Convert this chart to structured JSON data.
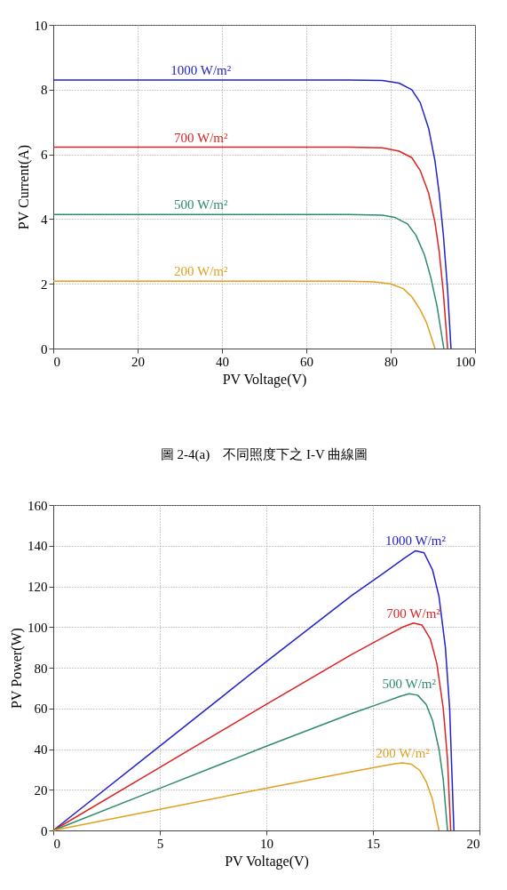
{
  "chart_data": [
    {
      "type": "line",
      "xlabel": "PV Voltage(V)",
      "ylabel": "PV Current(A)",
      "xlim": [
        0,
        100
      ],
      "ylim": [
        0,
        10
      ],
      "xticks": [
        0,
        20,
        40,
        60,
        80,
        100
      ],
      "yticks": [
        0,
        2,
        4,
        6,
        8,
        10
      ],
      "grid": true,
      "legend": false,
      "series": [
        {
          "name": "1000 W/m²",
          "color": "#2222cc",
          "x": [
            0,
            70,
            78,
            82,
            85,
            87,
            89,
            90.5,
            91.5,
            92.5,
            93.5,
            94.3
          ],
          "values": [
            8.3,
            8.3,
            8.28,
            8.2,
            8.0,
            7.6,
            6.8,
            5.8,
            4.8,
            3.5,
            1.8,
            0
          ]
        },
        {
          "name": "700 W/m²",
          "color": "#dd2222",
          "x": [
            0,
            70,
            78,
            82,
            85,
            87,
            89,
            90.5,
            91.5,
            92.5,
            93.5
          ],
          "values": [
            6.22,
            6.22,
            6.2,
            6.1,
            5.9,
            5.5,
            4.8,
            3.9,
            3.0,
            1.7,
            0
          ]
        },
        {
          "name": "500 W/m²",
          "color": "#2e8b6e",
          "x": [
            0,
            70,
            78,
            81,
            84,
            86,
            88,
            89.5,
            91,
            92.6
          ],
          "values": [
            4.14,
            4.14,
            4.12,
            4.05,
            3.85,
            3.5,
            2.9,
            2.2,
            1.3,
            0
          ]
        },
        {
          "name": "200 W/m²",
          "color": "#e0a020",
          "x": [
            0,
            70,
            76,
            80,
            83,
            85,
            87,
            88.5,
            90.5
          ],
          "values": [
            2.08,
            2.08,
            2.06,
            2.0,
            1.85,
            1.6,
            1.2,
            0.8,
            0
          ]
        }
      ],
      "annotations": [
        "圖 2-4(a)　不同照度下之 I-V 曲線圖"
      ]
    },
    {
      "type": "line",
      "xlabel": "PV Voltage(V)",
      "ylabel": "PV Power(W)",
      "xlim": [
        0,
        20
      ],
      "ylim": [
        0,
        160
      ],
      "xticks": [
        0,
        5,
        10,
        15,
        20
      ],
      "yticks": [
        0,
        20,
        40,
        60,
        80,
        100,
        120,
        140,
        160
      ],
      "grid": true,
      "legend": false,
      "series": [
        {
          "name": "1000 W/m²",
          "color": "#2222cc",
          "x": [
            0,
            5,
            10,
            14,
            15.5,
            16.5,
            17,
            17.4,
            17.8,
            18.1,
            18.4,
            18.6,
            18.8
          ],
          "values": [
            0,
            41.5,
            83,
            115.5,
            126.5,
            134,
            137.5,
            136.5,
            128,
            115,
            90,
            60,
            0
          ]
        },
        {
          "name": "700 W/m²",
          "color": "#dd2222",
          "x": [
            0,
            5,
            10,
            14,
            15.5,
            16.4,
            16.9,
            17.3,
            17.7,
            18.0,
            18.3,
            18.5,
            18.65
          ],
          "values": [
            0,
            31,
            62,
            86.5,
            95,
            100,
            102,
            101,
            94,
            82,
            60,
            35,
            0
          ]
        },
        {
          "name": "500 W/m²",
          "color": "#2e8b6e",
          "x": [
            0,
            5,
            10,
            14,
            15.5,
            16.3,
            16.7,
            17.1,
            17.5,
            17.8,
            18.1,
            18.3,
            18.5
          ],
          "values": [
            0,
            20.7,
            41.4,
            57.5,
            63,
            66,
            67.2,
            66.5,
            62,
            54,
            40,
            25,
            0
          ]
        },
        {
          "name": "200 W/m²",
          "color": "#e0a020",
          "x": [
            0,
            5,
            10,
            14,
            15.5,
            16.1,
            16.4,
            16.8,
            17.2,
            17.5,
            17.8,
            18.1
          ],
          "values": [
            0,
            10.4,
            20.8,
            28.9,
            31.8,
            32.9,
            33.2,
            32.6,
            29.5,
            24,
            15,
            0
          ]
        }
      ]
    }
  ]
}
